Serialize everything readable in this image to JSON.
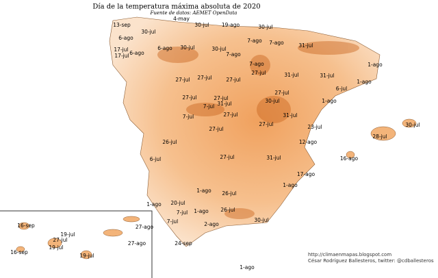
{
  "title": "Día de la temperatura máxima absoluta  de 2020",
  "source": "Fuente de datos: AEMET OpenData",
  "labels": [
    "4-may",
    "13-sep",
    "30-jul",
    "19-ago",
    "30-jul",
    "30-jul",
    "6-ago",
    "7-ago",
    "7-ago",
    "17-jul",
    "6-ago",
    "30-jul",
    "30-jul",
    "31-jul",
    "17-jul",
    "6-ago",
    "7-ago",
    "7-ago",
    "1-ago",
    "27-jul",
    "31-jul",
    "31-jul",
    "27-jul",
    "27-jul",
    "27-jul",
    "1-ago",
    "6-jul",
    "27-jul",
    "27-jul",
    "27-jul",
    "30-jul",
    "1-ago",
    "31-jul",
    "7-jul",
    "27-jul",
    "31-jul",
    "7-jul",
    "27-jul",
    "30-jul",
    "23-jul",
    "27-jul",
    "28-jul",
    "26-jul",
    "12-ago",
    "27-jul",
    "31-jul",
    "6-jul",
    "16-ago",
    "17-ago",
    "1-ago",
    "1-ago",
    "26-jul",
    "20-jul",
    "1-ago",
    "7-jul",
    "1-ago",
    "26-jul",
    "30-jul",
    "7-jul",
    "2-ago",
    "27-ago",
    "16-sep",
    "19-jul",
    "27-jul",
    "24-sep",
    "27-ago",
    "19-jul",
    "16-sep",
    "19-jul",
    "1-ago"
  ],
  "credits": {
    "url": "http://climaenmapas.blogspot.com",
    "author": "César Rodríguez Ballesteros, twitter: @cdballesteros"
  }
}
